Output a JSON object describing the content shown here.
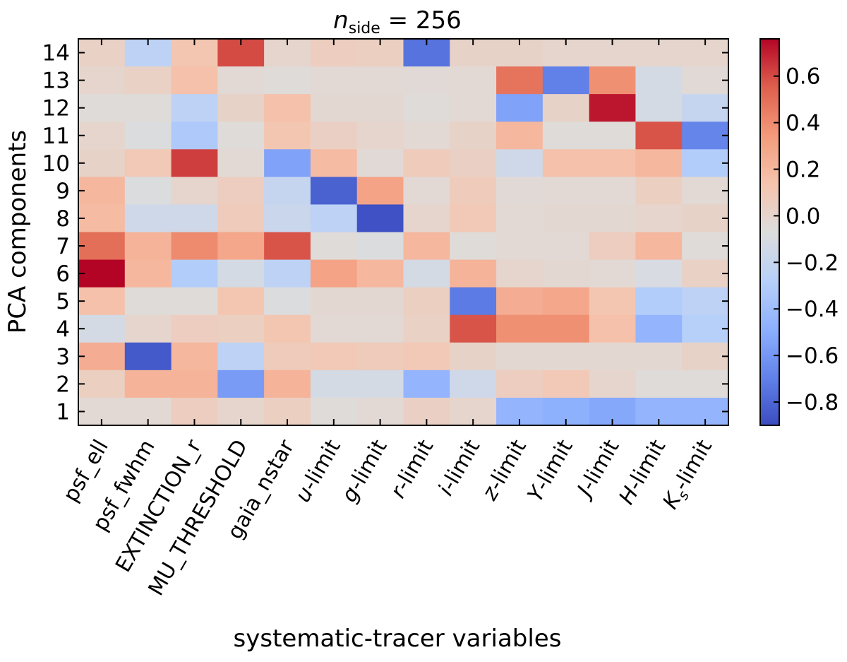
{
  "chart_data": {
    "type": "heatmap",
    "title": "n_side = 256",
    "title_parts": {
      "var": "n",
      "sub": "side",
      "rest": " = 256"
    },
    "xlabel": "systematic-tracer variables",
    "ylabel": "PCA components",
    "x_categories": [
      "psf_ell",
      "psf_fwhm",
      "EXTINCTION_r",
      "MU_THRESHOLD",
      "gaia_nstar",
      "u-limit",
      "g-limit",
      "r-limit",
      "i-limit",
      "z-limit",
      "Y-limit",
      "J-limit",
      "H-limit",
      "Ks-limit"
    ],
    "x_tick_labels": [
      {
        "plain": "psf_ell"
      },
      {
        "plain": "psf_fwhm"
      },
      {
        "plain": "EXTINCTION_r"
      },
      {
        "plain": "MU_THRESHOLD"
      },
      {
        "plain": "gaia_nstar"
      },
      {
        "var": "u",
        "rest": "-limit"
      },
      {
        "var": "g",
        "rest": "-limit"
      },
      {
        "var": "r",
        "rest": "-limit"
      },
      {
        "var": "i",
        "rest": "-limit"
      },
      {
        "var": "z",
        "rest": "-limit"
      },
      {
        "var": "Y",
        "rest": "-limit"
      },
      {
        "var": "J",
        "rest": "-limit"
      },
      {
        "var": "H",
        "rest": "-limit"
      },
      {
        "var": "K",
        "sub": "s",
        "rest": "-limit"
      }
    ],
    "y_categories": [
      14,
      13,
      12,
      11,
      10,
      9,
      8,
      7,
      6,
      5,
      4,
      3,
      2,
      1
    ],
    "values": [
      [
        0.03,
        -0.25,
        0.12,
        0.6,
        0.0,
        0.06,
        0.05,
        -0.75,
        0.02,
        0.02,
        0.0,
        0.0,
        0.0,
        0.0
      ],
      [
        0.0,
        0.03,
        0.15,
        -0.03,
        -0.05,
        -0.03,
        -0.03,
        -0.04,
        -0.03,
        0.48,
        -0.7,
        0.38,
        -0.12,
        -0.04
      ],
      [
        -0.05,
        -0.05,
        -0.25,
        0.02,
        0.15,
        -0.02,
        -0.02,
        -0.05,
        -0.03,
        -0.55,
        0.02,
        0.72,
        -0.12,
        -0.2
      ],
      [
        0.0,
        -0.08,
        -0.32,
        -0.05,
        0.12,
        0.04,
        0.0,
        -0.03,
        0.02,
        0.2,
        -0.05,
        -0.05,
        0.58,
        -0.68
      ],
      [
        0.02,
        0.1,
        0.63,
        -0.03,
        -0.55,
        0.18,
        -0.04,
        0.08,
        0.04,
        -0.15,
        0.15,
        0.15,
        0.2,
        -0.3
      ],
      [
        0.2,
        -0.08,
        0.0,
        0.06,
        -0.2,
        -0.82,
        0.3,
        -0.03,
        0.08,
        -0.04,
        -0.03,
        -0.03,
        0.05,
        -0.03
      ],
      [
        0.18,
        -0.15,
        -0.15,
        0.08,
        -0.18,
        -0.25,
        -0.88,
        0.0,
        0.1,
        -0.03,
        -0.02,
        -0.02,
        0.0,
        0.02
      ],
      [
        0.5,
        0.22,
        0.4,
        0.28,
        0.58,
        -0.05,
        -0.08,
        0.2,
        -0.05,
        -0.03,
        -0.03,
        0.06,
        0.2,
        -0.05
      ],
      [
        0.78,
        0.2,
        -0.3,
        -0.12,
        -0.25,
        0.3,
        0.2,
        -0.12,
        0.22,
        0.0,
        -0.02,
        -0.03,
        -0.1,
        0.03
      ],
      [
        0.15,
        -0.05,
        -0.05,
        0.12,
        -0.08,
        -0.02,
        -0.02,
        0.05,
        -0.72,
        0.25,
        0.28,
        0.12,
        -0.3,
        -0.25
      ],
      [
        -0.12,
        0.0,
        0.06,
        0.05,
        0.12,
        -0.03,
        -0.03,
        0.03,
        0.58,
        0.38,
        0.38,
        0.15,
        -0.45,
        -0.28
      ],
      [
        0.25,
        -0.85,
        0.2,
        -0.25,
        0.08,
        0.1,
        0.08,
        0.1,
        0.02,
        -0.02,
        -0.02,
        -0.02,
        -0.02,
        0.02
      ],
      [
        0.05,
        0.22,
        0.22,
        -0.58,
        0.22,
        -0.12,
        -0.12,
        -0.45,
        -0.15,
        0.06,
        0.1,
        0.0,
        -0.05,
        -0.05
      ],
      [
        -0.03,
        -0.03,
        0.06,
        0.0,
        0.05,
        -0.05,
        -0.03,
        0.04,
        0.0,
        -0.45,
        -0.48,
        -0.52,
        -0.45,
        -0.45
      ]
    ],
    "colormap": "coolwarm",
    "colorbar": {
      "vmin": -0.9,
      "vmax": 0.76,
      "ticks": [
        0.6,
        0.4,
        0.2,
        0.0,
        -0.2,
        -0.4,
        -0.6,
        -0.8
      ],
      "tick_labels": [
        "0.6",
        "0.4",
        "0.2",
        "0.0",
        "−0.2",
        "−0.4",
        "−0.6",
        "−0.8"
      ]
    },
    "grid": false,
    "legend": "none"
  }
}
